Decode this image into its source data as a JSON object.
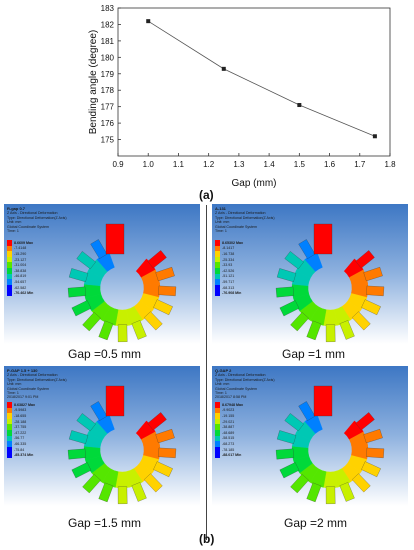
{
  "chart_data": {
    "type": "line",
    "x": [
      1.0,
      1.25,
      1.5,
      1.75
    ],
    "y": [
      182.2,
      179.3,
      177.1,
      175.2
    ],
    "xlabel": "Gap (mm)",
    "ylabel": "Bending angle (degree)",
    "xlim": [
      0.9,
      1.8
    ],
    "ylim": [
      174,
      183
    ],
    "xticks": [
      "0.9",
      "1.0",
      "1.1",
      "1.2",
      "1.3",
      "1.4",
      "1.5",
      "1.6",
      "1.7",
      "1.8"
    ],
    "yticks": [
      "175",
      "176",
      "177",
      "178",
      "179",
      "180",
      "181",
      "182",
      "183"
    ],
    "marker": "square",
    "line_color": "#555555",
    "grid": false
  },
  "labels": {
    "a": "(a)",
    "b": "(b)"
  },
  "colormap": [
    "#ff0000",
    "#ff7a00",
    "#ffd200",
    "#c8f000",
    "#55e600",
    "#00d93a",
    "#00c8b4",
    "#0080ff",
    "#0000ff"
  ],
  "panels": [
    {
      "caption": "Gap =0.5 mm",
      "info": [
        "R-gap 0.7",
        "Z Axis - Directional Deformation",
        "Type: Directional Deformation(Z Axis)",
        "Unit: mm",
        "Global Coordinate System",
        "Time: 1"
      ],
      "legend": [
        "8.6609 Max",
        "-7.4148",
        "-15.290",
        "-23.127",
        "-31.004",
        "-38.838",
        "-46.819",
        "-54.657",
        "-62.582",
        "-70.462 Min"
      ]
    },
    {
      "caption": "Gap =1 mm",
      "info": [
        "A-131",
        "Z Axis - Directional Deformation",
        "Type: Directional Deformation(Z Axis)",
        "Unit: mm",
        "Global Coordinate System",
        "Time: 1"
      ],
      "legend": [
        "8.65302 Max",
        "-8.1417",
        "-16.738",
        "-25.334",
        "-33.93",
        "-42.526",
        "-51.121",
        "-59.717",
        "-68.313",
        "-76.908 Min"
      ]
    },
    {
      "caption": "Gap =1.5 mm",
      "info": [
        "P-GAP 1.5 + 130",
        "Z Axis - Directional Deformation",
        "Type: Directional Deformation(Z Axis)",
        "Unit: mm",
        "Global Coordinate System",
        "Time: 1",
        "2018/2017 9:01 PM"
      ],
      "legend": [
        "8.63827 Max",
        "-9.5983",
        "-18.655",
        "-28.188",
        "-37.755",
        "-47.222",
        "-56.77",
        "-66.335",
        "-75.84",
        "-85.374 Min"
      ]
    },
    {
      "caption": "Gap =2 mm",
      "info": [
        "Q-GAP 2",
        "Z Axis - Directional Deformation",
        "Type: Directional Deformation(Z Axis)",
        "Unit: mm",
        "Global Coordinate System",
        "Time: 1",
        "2018/2017 8:58 PM"
      ],
      "legend": [
        "8.67948 Max",
        "-9.9023",
        "-19.155",
        "-29.021",
        "-38.887",
        "-48.689",
        "-58.515",
        "-68.273",
        "-78.185",
        "-88.017 Min"
      ]
    }
  ]
}
